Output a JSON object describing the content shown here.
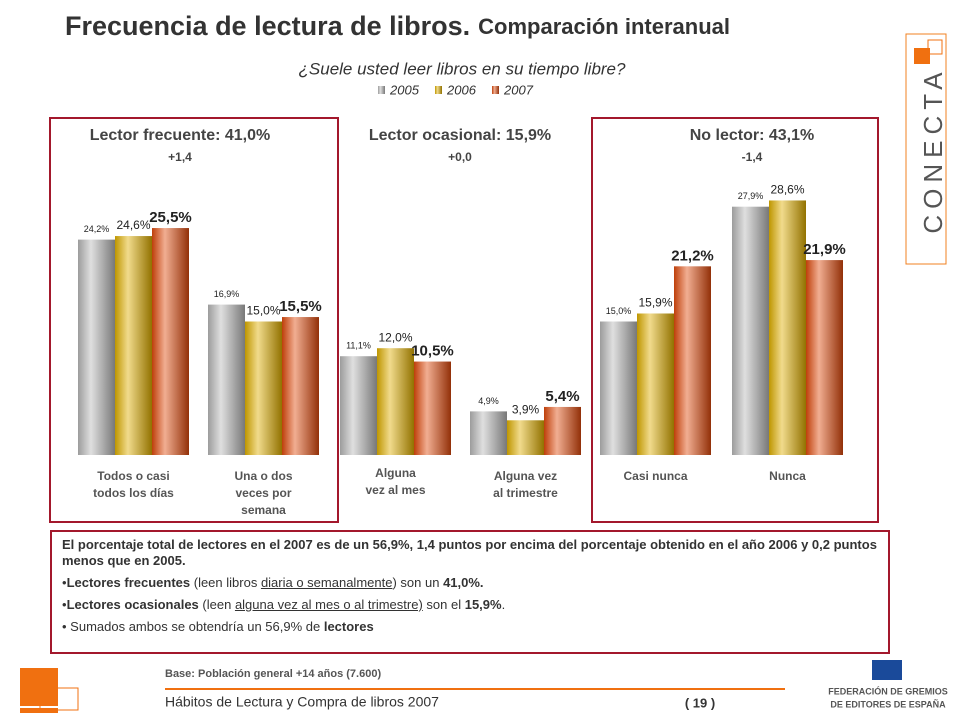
{
  "header": {
    "title": "Frecuencia de lectura de libros.",
    "title_suffix": "Comparación interanual",
    "subtitle": "¿Suele usted leer libros en su tiempo libre?"
  },
  "chart_data": {
    "type": "bar",
    "categories": [
      [
        "Todos o casi",
        "todos los días"
      ],
      [
        "Una o dos",
        "veces por",
        "semana"
      ],
      [
        "Alguna",
        "vez al mes"
      ],
      [
        "Alguna vez",
        "al trimestre"
      ],
      [
        "Casi nunca"
      ],
      [
        "Nunca"
      ]
    ],
    "series": [
      {
        "name": "2005",
        "color": "#b8b8b8",
        "values": [
          24.2,
          16.9,
          11.1,
          4.9,
          15.0,
          27.9
        ],
        "value_labels": [
          "24,2%",
          "16,9%",
          "11,1%",
          "4,9%",
          "15,0%",
          "27,9%"
        ]
      },
      {
        "name": "2006",
        "color": "#e0b000",
        "values": [
          24.6,
          15.0,
          12.0,
          3.9,
          15.9,
          28.6
        ],
        "value_labels": [
          "24,6%",
          "15,0%",
          "12,0%",
          "3,9%",
          "15,9%",
          "28,6%"
        ]
      },
      {
        "name": "2007",
        "color": "#e04a0c",
        "values": [
          25.5,
          15.5,
          10.5,
          5.4,
          21.2,
          21.9
        ],
        "value_labels": [
          "25,5%",
          "15,5%",
          "10,5%",
          "5,4%",
          "21,2%",
          "21,9%"
        ]
      }
    ],
    "groups": [
      {
        "label": "Lector frecuente: 41,0%",
        "change": "+1,4"
      },
      {
        "label": "Lector ocasional: 15,9%",
        "change": "+0,0"
      },
      {
        "label": "No lector: 43,1%",
        "change": "-1,4"
      }
    ]
  },
  "notes": [
    [
      "El porcentaje total de lectores en el 2007 es de un 56,9%, 1,4 puntos por encima del porcentaje obtenido en el año  2006 y 0,2 puntos menos que en 2005."
    ],
    [
      "•",
      "Lectores frecuentes",
      " (leen libros ",
      "diaria o semanalmente",
      ") son un ",
      "41,0%."
    ],
    [
      "•",
      "Lectores ocasionales",
      " (leen ",
      "alguna vez al mes o al trimestre)",
      " son el ",
      "15,9%",
      "."
    ],
    [
      "• Sumados ambos se obtendría un 56,9% de ",
      "lectores"
    ]
  ],
  "footer": {
    "base": "Base: Población general +14 años (7.600)",
    "report": "Hábitos de Lectura y Compra de libros 2007",
    "page": "( 19 )",
    "brand": "CONECTA",
    "federation": [
      "FEDERACIÓN DE GREMIOS",
      "DE EDITORES DE ESPAÑA"
    ]
  }
}
